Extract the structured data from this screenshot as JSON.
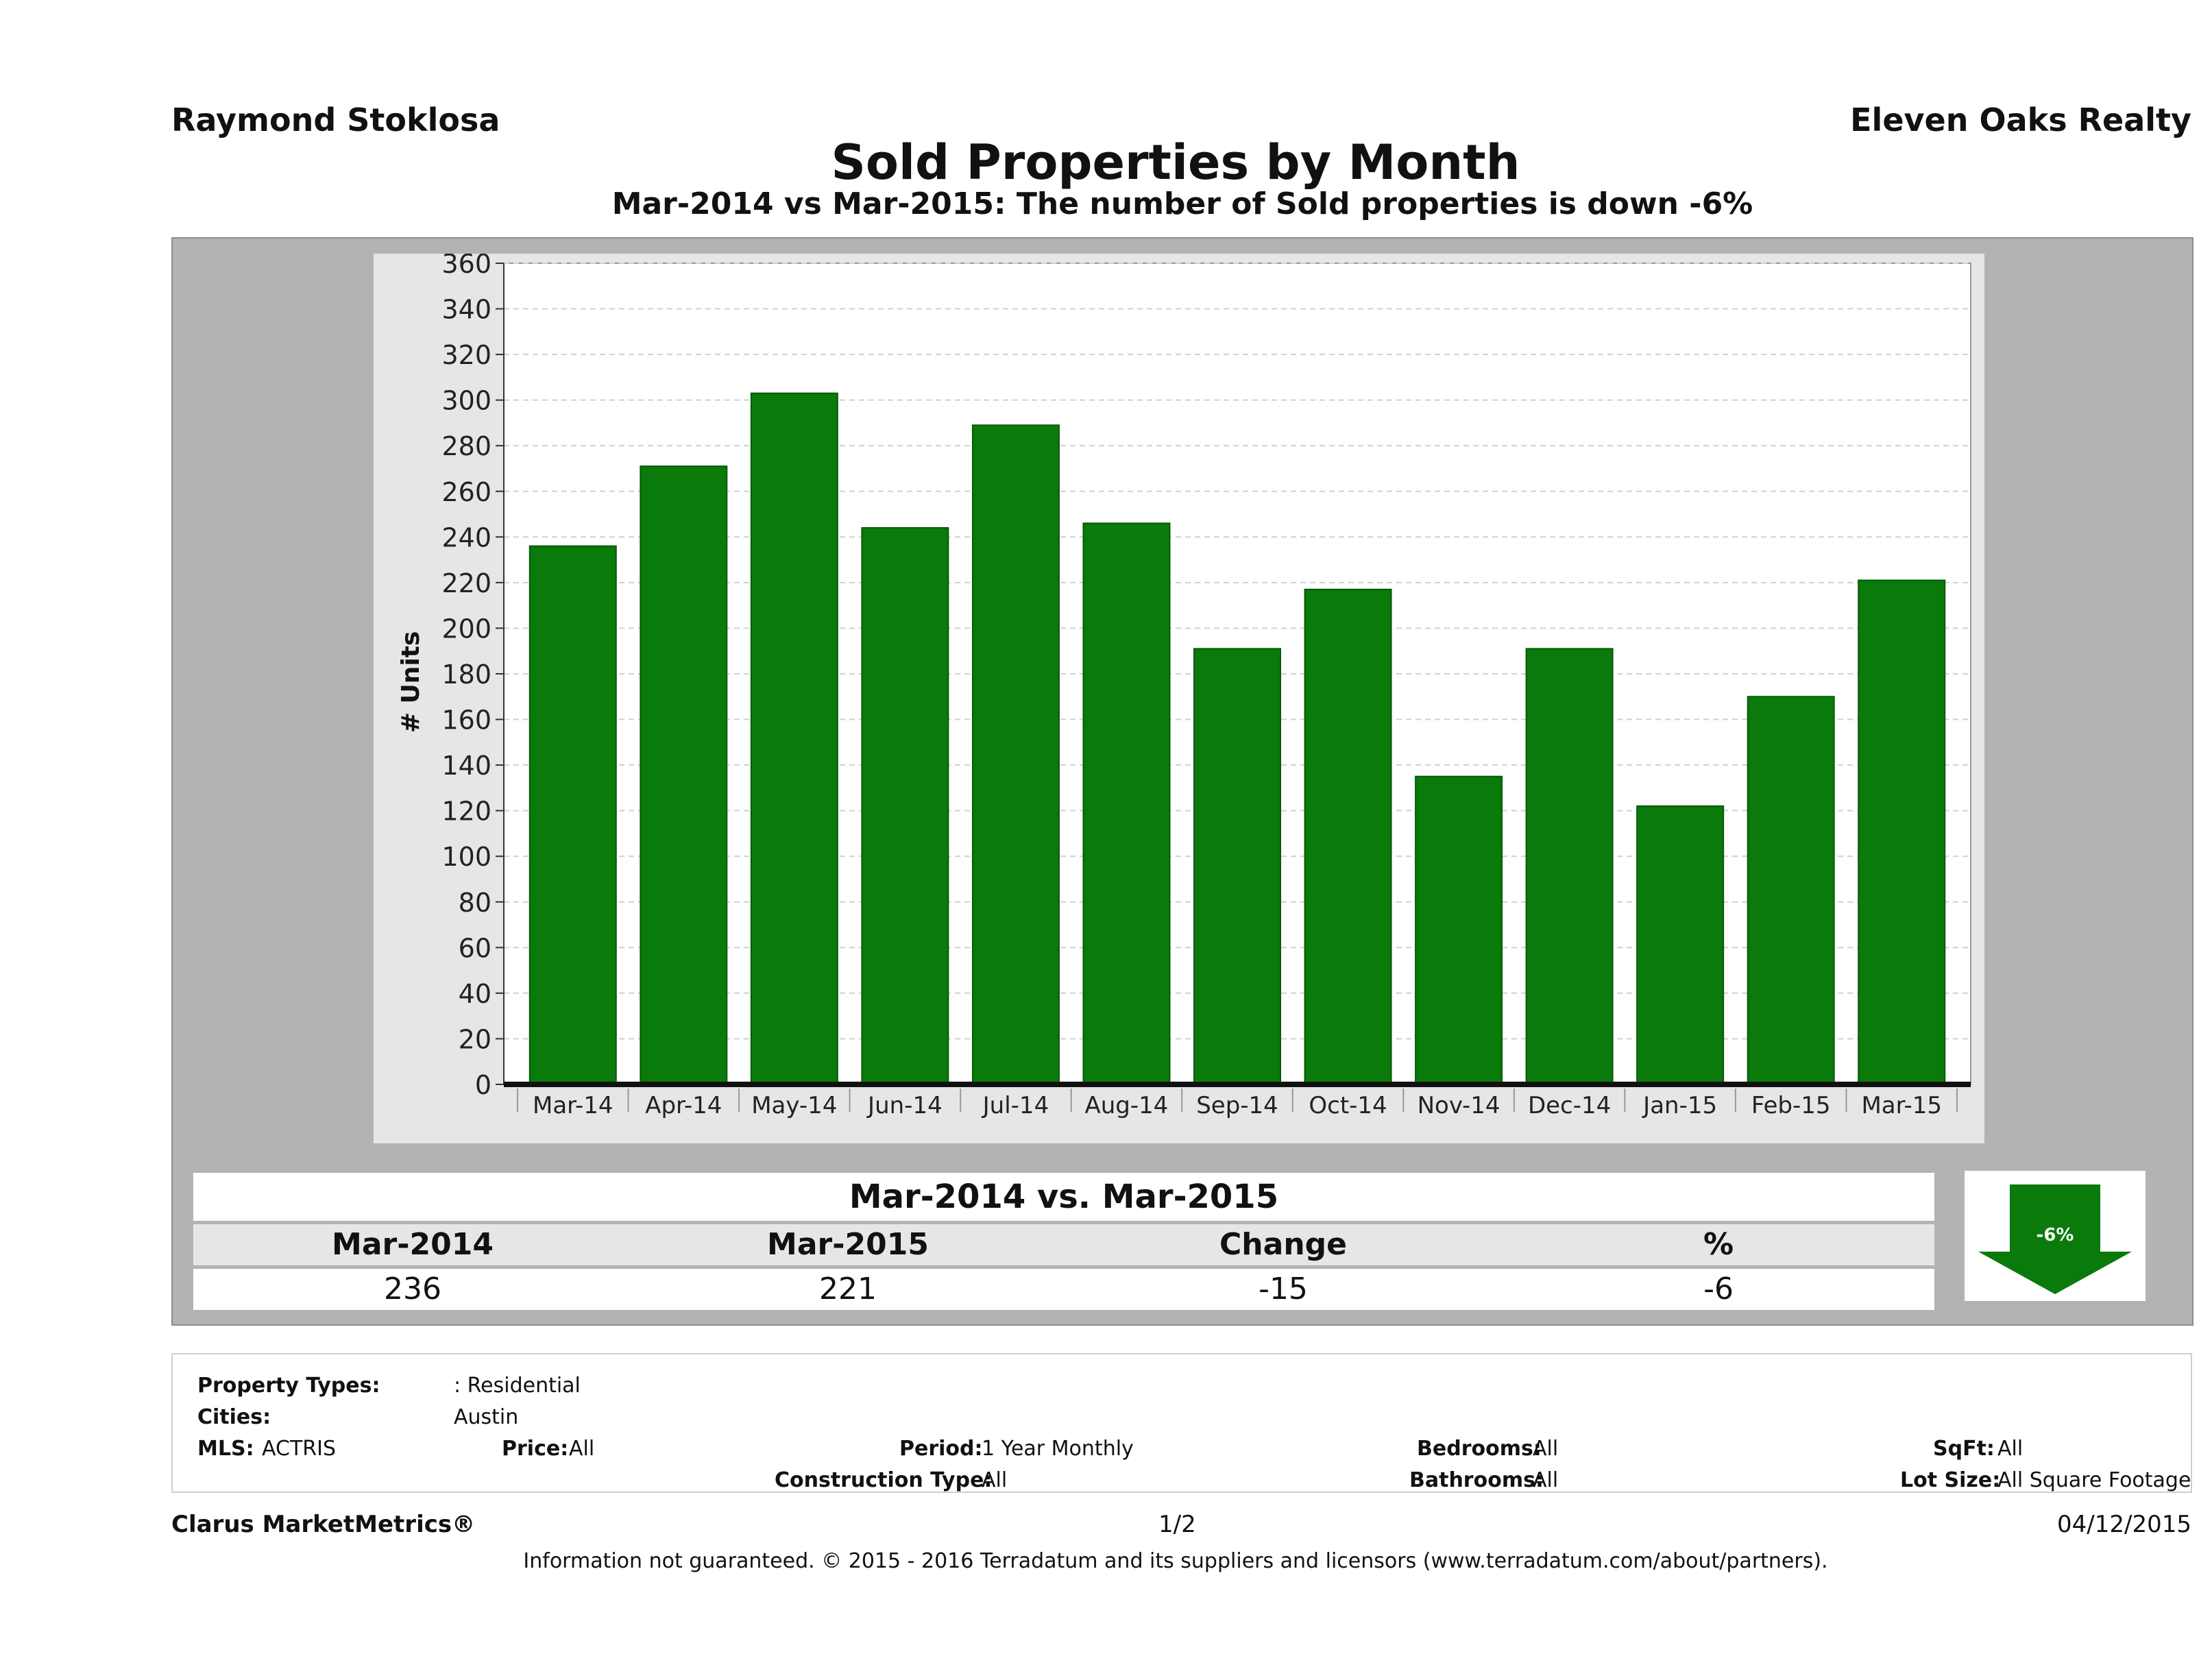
{
  "header": {
    "agent": "Raymond Stoklosa",
    "broker": "Eleven Oaks Realty",
    "title": "Sold Properties by Month",
    "subtitle": "Mar-2014 vs Mar-2015: The number of Sold  properties is down -6%"
  },
  "chart_data": {
    "type": "bar",
    "categories": [
      "Mar-14",
      "Apr-14",
      "May-14",
      "Jun-14",
      "Jul-14",
      "Aug-14",
      "Sep-14",
      "Oct-14",
      "Nov-14",
      "Dec-14",
      "Jan-15",
      "Feb-15",
      "Mar-15"
    ],
    "values": [
      236,
      271,
      303,
      244,
      289,
      246,
      191,
      217,
      135,
      191,
      122,
      170,
      221
    ],
    "ylabel": "# Units",
    "xlabel": "",
    "ylim": [
      0,
      360
    ],
    "yticks": [
      0,
      20,
      40,
      60,
      80,
      100,
      120,
      140,
      160,
      180,
      200,
      220,
      240,
      260,
      280,
      300,
      320,
      340,
      360
    ],
    "grid": true,
    "bar_color": "#0a7a0a"
  },
  "comparison": {
    "header": "Mar-2014 vs. Mar-2015",
    "labels": [
      "Mar-2014",
      "Mar-2015",
      "Change",
      "%"
    ],
    "values": [
      "236",
      "221",
      "-15",
      "-6"
    ],
    "badge": "-6%"
  },
  "criteria": {
    "property_types_label": "Property Types:",
    "property_types_value": ": Residential",
    "cities_label": "Cities:",
    "cities_value": "Austin",
    "mls_label": "MLS:",
    "mls_value": "ACTRIS",
    "price_label": "Price:",
    "price_value": "All",
    "period_label": "Period:",
    "period_value": "1 Year Monthly",
    "construction_label": "Construction Type:",
    "construction_value": "All",
    "bedrooms_label": "Bedrooms:",
    "bedrooms_value": "All",
    "bathrooms_label": "Bathrooms:",
    "bathrooms_value": "All",
    "sqft_label": "SqFt:",
    "sqft_value": "All",
    "lotsize_label": "Lot Size:",
    "lotsize_value": "All Square Footage"
  },
  "footer": {
    "brand": "Clarus MarketMetrics®",
    "page": "1/2",
    "date": "04/12/2015",
    "disclaimer": "Information not guaranteed. © 2015 - 2016 Terradatum and its suppliers and licensors (www.terradatum.com/about/partners)."
  }
}
